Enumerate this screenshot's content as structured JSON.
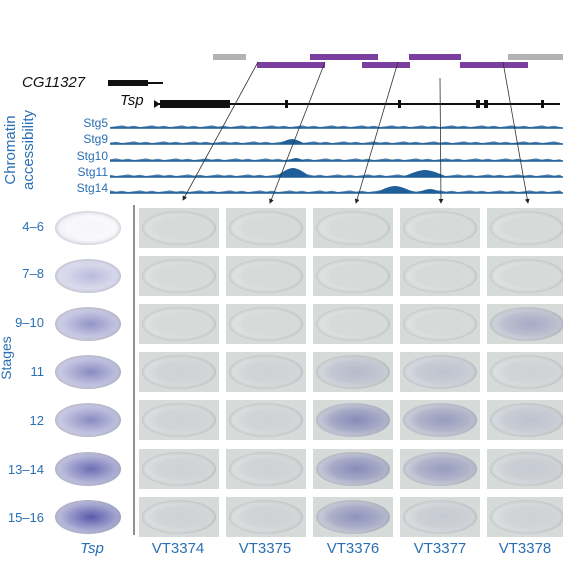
{
  "genes": {
    "cg": "CG11327",
    "tsp": "Tsp"
  },
  "track_title": "Chromatin accessibility",
  "tracks": [
    "Stg5",
    "Stg9",
    "Stg10",
    "Stg11",
    "Stg14"
  ],
  "stage_axis_label": "Stages",
  "stages": [
    "4–6",
    "7–8",
    "9–10",
    "11",
    "12",
    "13–14",
    "15–16"
  ],
  "columns": [
    "Tsp",
    "VT3374",
    "VT3375",
    "VT3376",
    "VT3377",
    "VT3378"
  ],
  "colors": {
    "label_blue": "#2a6fb4",
    "track_blue": "#1f5f99",
    "construct_purple": "#7b3fa0",
    "construct_gray": "#b3b3b3",
    "stain": "#3a3d9a"
  },
  "stain_levels": [
    [
      0.05,
      0.0,
      0.0,
      0.0,
      0.0,
      0.0
    ],
    [
      0.35,
      0.0,
      0.0,
      0.0,
      0.0,
      0.0
    ],
    [
      0.55,
      0.0,
      0.0,
      0.0,
      0.0,
      0.3
    ],
    [
      0.6,
      0.05,
      0.05,
      0.2,
      0.15,
      0.05
    ],
    [
      0.6,
      0.05,
      0.05,
      0.5,
      0.4,
      0.15
    ],
    [
      0.75,
      0.05,
      0.05,
      0.5,
      0.4,
      0.1
    ],
    [
      0.85,
      0.05,
      0.05,
      0.45,
      0.1,
      0.05
    ]
  ]
}
